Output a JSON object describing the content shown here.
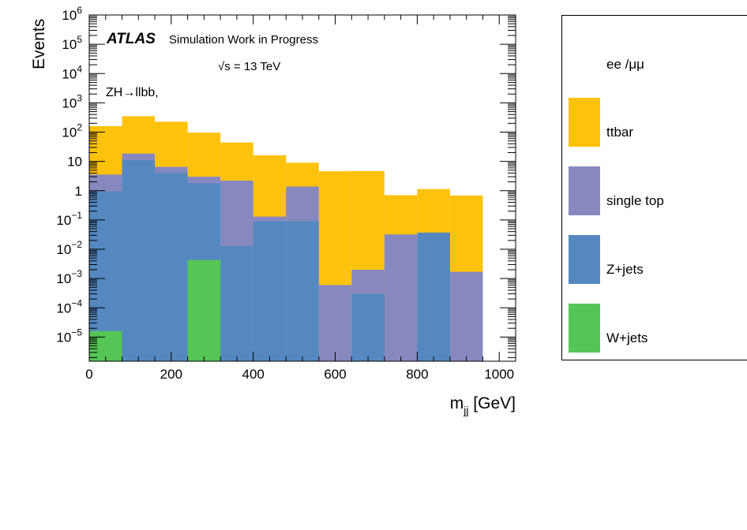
{
  "chart_data": {
    "type": "bar",
    "stacked": true,
    "ylog": true,
    "xlabel_main": "m",
    "xlabel_sub": "jj",
    "xlabel_unit": " [GeV]",
    "ylabel": "Events",
    "xlim": [
      0,
      1040
    ],
    "ylim": [
      1.5e-06,
      1000000.0
    ],
    "x_ticks": [
      0,
      200,
      400,
      600,
      800,
      1000
    ],
    "y_ticks": [
      {
        "value": 1e-05,
        "base": "10",
        "exp": "−5"
      },
      {
        "value": 0.0001,
        "base": "10",
        "exp": "−4"
      },
      {
        "value": 0.001,
        "base": "10",
        "exp": "−3"
      },
      {
        "value": 0.01,
        "base": "10",
        "exp": "−2"
      },
      {
        "value": 0.1,
        "base": "10",
        "exp": "−1"
      },
      {
        "value": 1,
        "base": "1",
        "exp": ""
      },
      {
        "value": 10,
        "base": "10",
        "exp": ""
      },
      {
        "value": 100,
        "base": "10",
        "exp": "2"
      },
      {
        "value": 1000,
        "base": "10",
        "exp": "3"
      },
      {
        "value": 10000,
        "base": "10",
        "exp": "4"
      },
      {
        "value": 100000,
        "base": "10",
        "exp": "5"
      },
      {
        "value": 1000000,
        "base": "10",
        "exp": "6"
      }
    ],
    "bin_edges": [
      0,
      80,
      160,
      240,
      320,
      400,
      480,
      560,
      640,
      720,
      800,
      880,
      960
    ],
    "series": [
      {
        "name": "W+jets",
        "color": "#55c555",
        "values": [
          1.6e-05,
          0,
          0,
          0.0043,
          0,
          0,
          0,
          0,
          0,
          0,
          0,
          0
        ]
      },
      {
        "name": "Z+jets",
        "color": "#5588c0",
        "values": [
          0.95,
          11,
          4.0,
          1.8,
          0.013,
          0.09,
          0.09,
          0,
          0.0003,
          0,
          0.037,
          0
        ]
      },
      {
        "name": "single top",
        "color": "#8888c0",
        "values": [
          2.6,
          7.5,
          2.5,
          1.2,
          2.2,
          0.04,
          1.3,
          0.0006,
          0.0017,
          0.032,
          0.0,
          0.0017
        ]
      },
      {
        "name": "ttbar",
        "color": "#ffc20a",
        "values": [
          156,
          330,
          220,
          93,
          42,
          16,
          7.6,
          4.6,
          4.7,
          0.67,
          1.1,
          0.68
        ]
      }
    ],
    "annotations": {
      "atlas": "ATLAS",
      "atlas_sub": "Simulation Work in Progress",
      "energy": "√s = 13 TeV",
      "channel": "ZH→llbb,"
    },
    "legend": {
      "placement": "right",
      "header": "ee /μμ",
      "entries": [
        {
          "label": "ttbar",
          "color": "#ffc20a"
        },
        {
          "label": "single top",
          "color": "#8888c0"
        },
        {
          "label": "Z+jets",
          "color": "#5588c0"
        },
        {
          "label": "W+jets",
          "color": "#55c555"
        }
      ]
    }
  }
}
